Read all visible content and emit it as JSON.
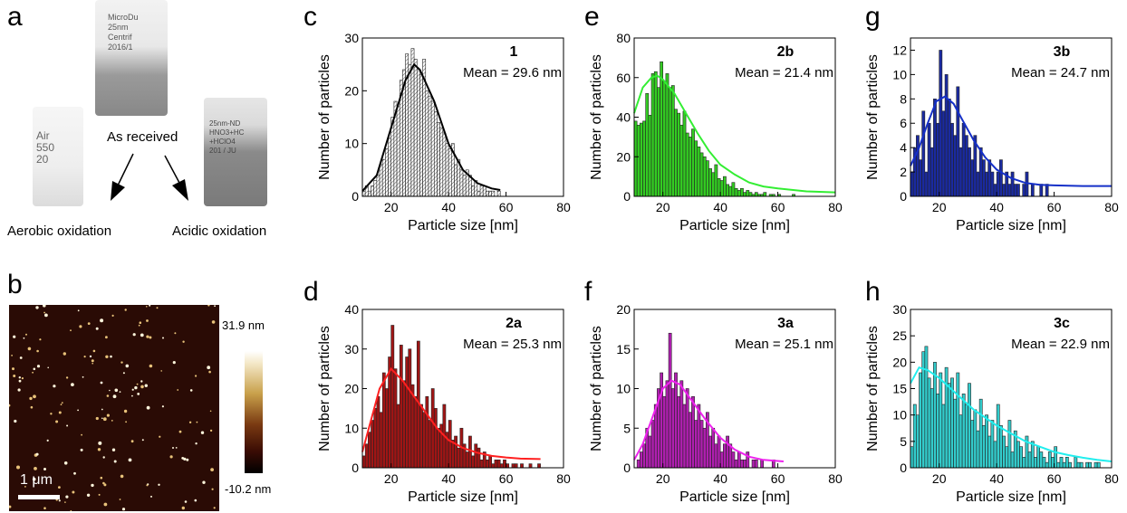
{
  "panel_labels": [
    "a",
    "b",
    "c",
    "d",
    "e",
    "f",
    "g",
    "h"
  ],
  "panel_a": {
    "as_received": "As received",
    "aerobic": "Aerobic oxidation",
    "acidic": "Acidic oxidation",
    "tube_top_text": [
      "MicroDu",
      "25nm",
      "Centrif",
      "2016/1"
    ],
    "tube_left_text": [
      "Air",
      "550",
      "20"
    ],
    "tube_right_text": [
      "25nm-ND",
      "HNO3+HC",
      "+HClO4",
      "201 / JU"
    ]
  },
  "panel_b": {
    "colorbar_max": "31.9 nm",
    "colorbar_min": "-10.2 nm",
    "scale_bar": "1 μm"
  },
  "chart_data": [
    {
      "panel": "c",
      "type": "bar",
      "sample": "1",
      "mean_label": "Mean = 29.6 nm",
      "xlabel": "Particle size [nm]",
      "ylabel": "Number of particles",
      "xlim": [
        10,
        80
      ],
      "ylim": [
        0,
        30
      ],
      "yticks": [
        0,
        10,
        20,
        30
      ],
      "xticks": [
        20,
        40,
        60,
        80
      ],
      "bar_color": "#cccccc",
      "bar_pattern": "hatched",
      "fit_color": "#000000",
      "bin_width": 1,
      "x": [
        10,
        11,
        12,
        13,
        14,
        15,
        16,
        17,
        18,
        19,
        20,
        21,
        22,
        23,
        24,
        25,
        26,
        27,
        28,
        29,
        30,
        31,
        32,
        33,
        34,
        35,
        36,
        37,
        38,
        39,
        40,
        41,
        42,
        43,
        44,
        45,
        46,
        47,
        48,
        49,
        50,
        51,
        52,
        53,
        54,
        55,
        56,
        57,
        58
      ],
      "values": [
        1,
        2,
        1,
        2,
        3,
        4,
        6,
        7,
        9,
        11,
        15,
        18,
        17,
        22,
        24,
        27,
        25,
        28,
        26,
        24,
        23,
        26,
        20,
        19,
        18,
        16,
        14,
        13,
        12,
        10,
        9,
        10,
        6,
        7,
        5,
        4,
        5,
        4,
        2,
        3,
        1,
        2,
        2,
        1,
        1,
        1,
        0,
        1,
        0
      ],
      "fit_x": [
        10,
        15,
        20,
        25,
        28,
        30,
        35,
        40,
        45,
        50,
        55,
        58
      ],
      "fit_y": [
        1,
        4,
        13,
        22,
        25,
        24,
        18,
        10,
        5,
        2.5,
        1.5,
        1.2
      ]
    },
    {
      "panel": "d",
      "type": "bar",
      "sample": "2a",
      "mean_label": "Mean = 25.3 nm",
      "xlabel": "Particle size [nm]",
      "ylabel": "Number of particles",
      "xlim": [
        10,
        80
      ],
      "ylim": [
        0,
        40
      ],
      "yticks": [
        0,
        10,
        20,
        30,
        40
      ],
      "xticks": [
        20,
        40,
        60,
        80
      ],
      "bar_color": "#a01515",
      "fit_color": "#ff2020",
      "bin_width": 1,
      "x": [
        10,
        11,
        12,
        13,
        14,
        15,
        16,
        17,
        18,
        19,
        20,
        21,
        22,
        23,
        24,
        25,
        26,
        27,
        28,
        29,
        30,
        31,
        32,
        33,
        34,
        35,
        36,
        37,
        38,
        39,
        40,
        41,
        42,
        43,
        44,
        45,
        46,
        47,
        48,
        49,
        50,
        51,
        52,
        53,
        54,
        55,
        56,
        57,
        58,
        59,
        60,
        61,
        62,
        63,
        64,
        65,
        66,
        67,
        68,
        69,
        70,
        71
      ],
      "values": [
        3,
        6,
        9,
        12,
        15,
        18,
        14,
        24,
        20,
        28,
        36,
        25,
        16,
        31,
        22,
        28,
        30,
        21,
        18,
        32,
        16,
        14,
        18,
        12,
        20,
        15,
        10,
        11,
        16,
        9,
        12,
        7,
        8,
        5,
        10,
        6,
        4,
        8,
        3,
        6,
        5,
        2,
        4,
        2,
        3,
        1,
        2,
        2,
        1,
        2,
        1,
        0,
        1,
        1,
        0,
        1,
        0,
        0,
        1,
        0,
        0,
        1
      ],
      "fit_x": [
        10,
        13,
        16,
        20,
        24,
        28,
        32,
        36,
        40,
        45,
        50,
        55,
        60,
        65,
        72
      ],
      "fit_y": [
        4,
        12,
        20,
        25,
        22,
        18,
        14,
        10,
        7,
        5,
        3.8,
        3,
        2.6,
        2.3,
        2.2
      ]
    },
    {
      "panel": "e",
      "type": "bar",
      "sample": "2b",
      "mean_label": "Mean = 21.4 nm",
      "xlabel": "Particle size [nm]",
      "ylabel": "Number of particles",
      "xlim": [
        10,
        80
      ],
      "ylim": [
        0,
        80
      ],
      "yticks": [
        0,
        20,
        40,
        60,
        80
      ],
      "xticks": [
        20,
        40,
        60,
        80
      ],
      "bar_color": "#33cc22",
      "fit_color": "#33ee33",
      "bin_width": 1,
      "x": [
        10,
        11,
        12,
        13,
        14,
        15,
        16,
        17,
        18,
        19,
        20,
        21,
        22,
        23,
        24,
        25,
        26,
        27,
        28,
        29,
        30,
        31,
        32,
        33,
        34,
        35,
        36,
        37,
        38,
        39,
        40,
        41,
        42,
        43,
        44,
        45,
        46,
        47,
        48,
        49,
        50,
        51,
        52,
        53,
        54,
        55,
        56,
        57,
        58,
        59,
        60,
        61,
        62,
        63,
        64,
        65
      ],
      "values": [
        38,
        36,
        37,
        38,
        52,
        41,
        62,
        63,
        55,
        68,
        58,
        62,
        55,
        56,
        44,
        42,
        36,
        43,
        32,
        30,
        34,
        28,
        25,
        22,
        20,
        18,
        14,
        12,
        16,
        9,
        8,
        10,
        6,
        5,
        7,
        4,
        3,
        4,
        2,
        3,
        2,
        1,
        2,
        1,
        1,
        2,
        0,
        1,
        1,
        0,
        1,
        0,
        0,
        0,
        0,
        1
      ],
      "fit_x": [
        10,
        13,
        16,
        18,
        20,
        24,
        28,
        32,
        36,
        40,
        45,
        50,
        55,
        60,
        70,
        80
      ],
      "fit_y": [
        42,
        55,
        60,
        61,
        59,
        52,
        42,
        32,
        23,
        16,
        11,
        7,
        5,
        4,
        2.5,
        2
      ]
    },
    {
      "panel": "f",
      "type": "bar",
      "sample": "3a",
      "mean_label": "Mean = 25.1 nm",
      "xlabel": "Particle size [nm]",
      "ylabel": "Number of particles",
      "xlim": [
        10,
        80
      ],
      "ylim": [
        0,
        20
      ],
      "yticks": [
        0,
        5,
        10,
        15,
        20
      ],
      "xticks": [
        20,
        40,
        60,
        80
      ],
      "bar_color": "#b01fb0",
      "fit_color": "#ee22ee",
      "bin_width": 1,
      "x": [
        10,
        11,
        12,
        13,
        14,
        15,
        16,
        17,
        18,
        19,
        20,
        21,
        22,
        23,
        24,
        25,
        26,
        27,
        28,
        29,
        30,
        31,
        32,
        33,
        34,
        35,
        36,
        37,
        38,
        39,
        40,
        41,
        42,
        43,
        44,
        45,
        46,
        47,
        48,
        49,
        50,
        51,
        52,
        53,
        54,
        55,
        56,
        57,
        58,
        59,
        60,
        61,
        62
      ],
      "values": [
        0,
        1,
        2,
        3,
        5,
        4,
        6,
        8,
        10,
        12,
        9,
        11,
        17,
        10,
        12,
        9,
        11,
        8,
        10,
        7,
        9,
        6,
        8,
        6,
        5,
        7,
        4,
        5,
        3,
        4,
        2,
        3,
        4,
        3,
        2,
        1,
        2,
        1,
        1,
        2,
        0,
        1,
        1,
        0,
        1,
        0,
        0,
        0,
        1,
        0,
        0,
        0,
        0
      ],
      "fit_x": [
        10,
        13,
        16,
        20,
        23,
        26,
        30,
        35,
        40,
        45,
        50,
        55,
        62
      ],
      "fit_y": [
        1,
        3,
        6,
        10,
        11,
        10.5,
        8.5,
        6,
        3.8,
        2.3,
        1.4,
        1,
        0.8
      ]
    },
    {
      "panel": "g",
      "type": "bar",
      "sample": "3b",
      "mean_label": "Mean = 24.7 nm",
      "xlabel": "Particle size [nm]",
      "ylabel": "Number of particles",
      "xlim": [
        10,
        80
      ],
      "ylim": [
        0,
        13
      ],
      "yticks": [
        0,
        2,
        4,
        6,
        8,
        10,
        12
      ],
      "xticks": [
        20,
        40,
        60,
        80
      ],
      "bar_color": "#1a2aa0",
      "fit_color": "#1530c8",
      "bin_width": 1,
      "x": [
        10,
        11,
        12,
        13,
        14,
        15,
        16,
        17,
        18,
        19,
        20,
        21,
        22,
        23,
        24,
        25,
        26,
        27,
        28,
        29,
        30,
        31,
        32,
        33,
        34,
        35,
        36,
        37,
        38,
        39,
        40,
        41,
        42,
        43,
        44,
        45,
        46,
        47,
        48,
        49,
        50,
        51,
        52,
        53,
        54,
        55,
        56,
        57
      ],
      "values": [
        2,
        4,
        5,
        3,
        7,
        2,
        6,
        4,
        8,
        6,
        12,
        7,
        10,
        8,
        6,
        5,
        9,
        4,
        6,
        5,
        4,
        3,
        5,
        2,
        4,
        3,
        2,
        3,
        2,
        1,
        2,
        3,
        1,
        2,
        1,
        2,
        1,
        1,
        0,
        1,
        2,
        0,
        1,
        0,
        0,
        1,
        0,
        1
      ],
      "fit_x": [
        10,
        13,
        16,
        19,
        22,
        25,
        28,
        32,
        36,
        40,
        45,
        50,
        55,
        60,
        70,
        80
      ],
      "fit_y": [
        2.5,
        4,
        6,
        7.8,
        8.2,
        7.6,
        6.3,
        4.6,
        3.2,
        2.2,
        1.5,
        1.1,
        0.95,
        0.9,
        0.85,
        0.85
      ]
    },
    {
      "panel": "h",
      "type": "bar",
      "sample": "3c",
      "mean_label": "Mean = 22.9 nm",
      "xlabel": "Particle size [nm]",
      "ylabel": "Number of particles",
      "xlim": [
        10,
        80
      ],
      "ylim": [
        0,
        30
      ],
      "yticks": [
        0,
        5,
        10,
        15,
        20,
        25,
        30
      ],
      "xticks": [
        20,
        40,
        60,
        80
      ],
      "bar_color": "#33cccc",
      "fit_color": "#22eeee",
      "bin_width": 1,
      "x": [
        10,
        11,
        12,
        13,
        14,
        15,
        16,
        17,
        18,
        19,
        20,
        21,
        22,
        23,
        24,
        25,
        26,
        27,
        28,
        29,
        30,
        31,
        32,
        33,
        34,
        35,
        36,
        37,
        38,
        39,
        40,
        41,
        42,
        43,
        44,
        45,
        46,
        47,
        48,
        49,
        50,
        51,
        52,
        53,
        54,
        55,
        56,
        57,
        58,
        59,
        60,
        61,
        62,
        63,
        64,
        65,
        66,
        67,
        68,
        69,
        70,
        71,
        72,
        73,
        74,
        75
      ],
      "values": [
        4,
        12,
        10,
        18,
        22,
        23,
        17,
        15,
        20,
        14,
        18,
        12,
        19,
        16,
        17,
        13,
        18,
        10,
        14,
        12,
        16,
        9,
        11,
        7,
        13,
        8,
        10,
        6,
        9,
        5,
        12,
        8,
        6,
        4,
        9,
        3,
        7,
        5,
        4,
        2,
        6,
        3,
        5,
        2,
        4,
        3,
        2,
        1,
        3,
        2,
        4,
        1,
        2,
        1,
        2,
        1,
        0,
        2,
        1,
        1,
        0,
        1,
        1,
        0,
        1,
        1
      ],
      "fit_x": [
        10,
        13,
        16,
        20,
        24,
        28,
        32,
        36,
        40,
        45,
        50,
        55,
        60,
        65,
        70,
        75,
        80
      ],
      "fit_y": [
        16,
        19,
        18.5,
        17,
        15,
        13,
        11,
        9.5,
        8,
        6.5,
        5,
        4,
        3,
        2.4,
        1.9,
        1.5,
        1.2
      ]
    }
  ]
}
